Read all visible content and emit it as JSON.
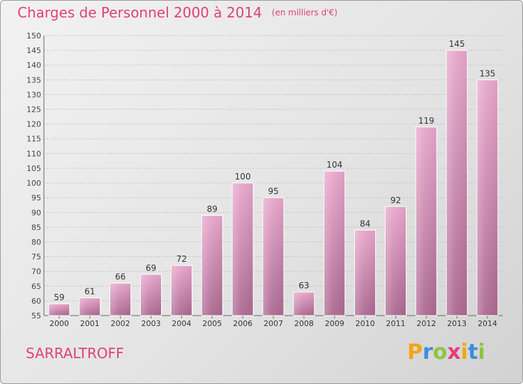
{
  "chart_data": {
    "type": "bar",
    "title": "Charges de Personnel 2000 à 2014",
    "unit": "(en milliers d'€)",
    "categories": [
      "2000",
      "2001",
      "2002",
      "2003",
      "2004",
      "2005",
      "2006",
      "2007",
      "2008",
      "2009",
      "2010",
      "2011",
      "2012",
      "2013",
      "2014"
    ],
    "values": [
      59,
      61,
      66,
      69,
      72,
      89,
      100,
      95,
      63,
      104,
      84,
      92,
      119,
      145,
      135
    ],
    "ylim": [
      55,
      150
    ],
    "yticks": [
      55,
      60,
      65,
      70,
      75,
      80,
      85,
      90,
      95,
      100,
      105,
      110,
      115,
      120,
      125,
      130,
      135,
      140,
      145,
      150
    ],
    "grid": "horizontal dashed",
    "bar_color": "#d37fae"
  },
  "commune": "SARRALTROFF",
  "logo": {
    "letters": [
      "P",
      "r",
      "o",
      "x",
      "i",
      "t",
      "i"
    ],
    "colors": [
      "#f4a417",
      "#3a8fd8",
      "#8cc63e",
      "#e83c78",
      "#f4a417",
      "#3a8fd8",
      "#8cc63e"
    ]
  },
  "colors": {
    "accent": "#e0407a",
    "axis": "#555555"
  }
}
